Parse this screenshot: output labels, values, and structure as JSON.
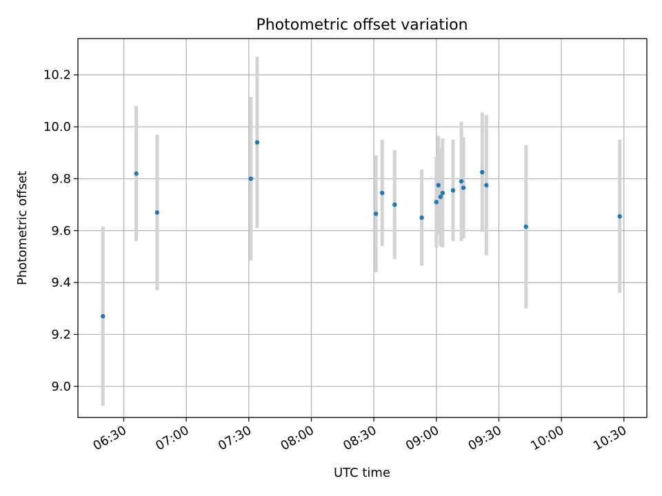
{
  "chart_data": {
    "type": "scatter",
    "title": "Photometric offset variation",
    "xlabel": "UTC time",
    "ylabel": "Photometric offset",
    "x_ticks": [
      "06:30",
      "07:00",
      "07:30",
      "08:00",
      "08:30",
      "09:00",
      "09:30",
      "10:00",
      "10:30"
    ],
    "y_ticks": [
      "9.0",
      "9.2",
      "9.4",
      "9.6",
      "9.8",
      "10.0",
      "10.2"
    ],
    "xlim": [
      "06:08",
      "10:41"
    ],
    "ylim": [
      8.88,
      10.34
    ],
    "grid": true,
    "errorbar_color": "#d3d3d3",
    "marker_color": "#1f77b4",
    "points": [
      {
        "t": "06:20",
        "y": 9.27,
        "err": 0.345
      },
      {
        "t": "06:36",
        "y": 9.82,
        "err": 0.26
      },
      {
        "t": "06:46",
        "y": 9.67,
        "err": 0.3
      },
      {
        "t": "07:31",
        "y": 9.8,
        "err": 0.315
      },
      {
        "t": "07:34",
        "y": 9.94,
        "err": 0.33
      },
      {
        "t": "08:31",
        "y": 9.665,
        "err": 0.225
      },
      {
        "t": "08:34",
        "y": 9.745,
        "err": 0.205
      },
      {
        "t": "08:40",
        "y": 9.7,
        "err": 0.21
      },
      {
        "t": "08:53",
        "y": 9.65,
        "err": 0.185
      },
      {
        "t": "09:00",
        "y": 9.71,
        "err": 0.175
      },
      {
        "t": "09:01",
        "y": 9.775,
        "err": 0.19
      },
      {
        "t": "09:02",
        "y": 9.73,
        "err": 0.19
      },
      {
        "t": "09:03",
        "y": 9.745,
        "err": 0.21
      },
      {
        "t": "09:08",
        "y": 9.755,
        "err": 0.195
      },
      {
        "t": "09:12",
        "y": 9.79,
        "err": 0.23
      },
      {
        "t": "09:13",
        "y": 9.765,
        "err": 0.195
      },
      {
        "t": "09:22",
        "y": 9.825,
        "err": 0.23
      },
      {
        "t": "09:24",
        "y": 9.775,
        "err": 0.27
      },
      {
        "t": "09:43",
        "y": 9.615,
        "err": 0.315
      },
      {
        "t": "10:28",
        "y": 9.655,
        "err": 0.295
      }
    ]
  }
}
